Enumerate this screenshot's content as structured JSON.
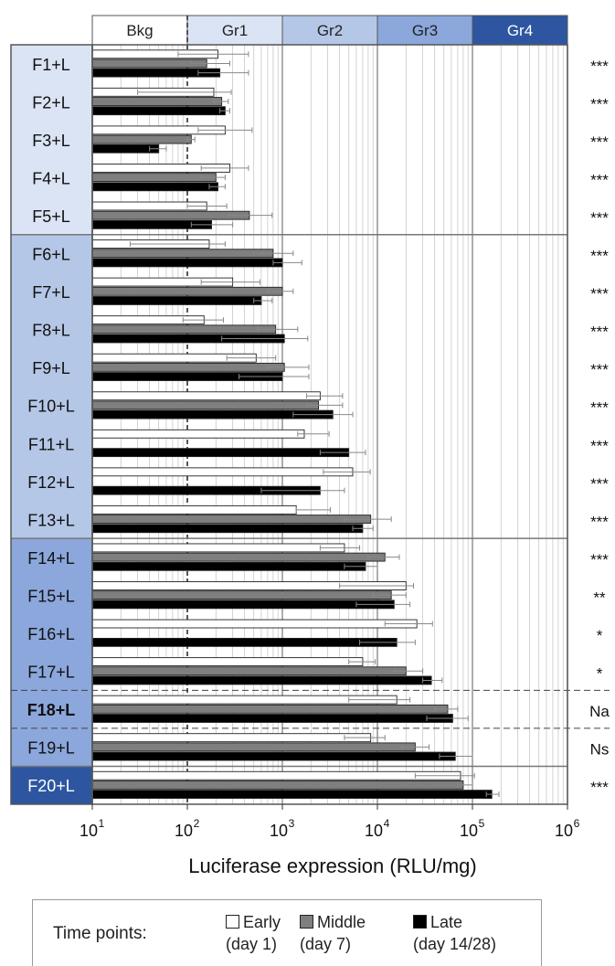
{
  "chart_data": {
    "type": "bar",
    "orientation": "horizontal",
    "xscale": "log",
    "xlim": [
      10,
      1000000
    ],
    "xlabel": "Luciferase expression (RLU/mg)",
    "xticks": [
      10,
      100,
      1000,
      10000,
      100000,
      1000000
    ],
    "xtick_labels": [
      {
        "base": "10",
        "exp": "1"
      },
      {
        "base": "10",
        "exp": "2"
      },
      {
        "base": "10",
        "exp": "3"
      },
      {
        "base": "10",
        "exp": "4"
      },
      {
        "base": "10",
        "exp": "5"
      },
      {
        "base": "10",
        "exp": "6"
      }
    ],
    "grid": "minor vertical gridlines on log scale",
    "background_reference_line": 100,
    "groups": [
      {
        "label": "Bkg",
        "from": 10,
        "to": 100,
        "color": "#ffffff",
        "text_color": "#222222"
      },
      {
        "label": "Gr1",
        "from": 100,
        "to": 1000,
        "color": "#dae4f4",
        "text_color": "#222222"
      },
      {
        "label": "Gr2",
        "from": 1000,
        "to": 10000,
        "color": "#b5c7e7",
        "text_color": "#222222"
      },
      {
        "label": "Gr3",
        "from": 10000,
        "to": 100000,
        "color": "#8ba7dc",
        "text_color": "#222222"
      },
      {
        "label": "Gr4",
        "from": 100000,
        "to": 1000000,
        "color": "#2e56a0",
        "text_color": "#ffffff"
      }
    ],
    "categories": [
      "F1+L",
      "F2+L",
      "F3+L",
      "F4+L",
      "F5+L",
      "F6+L",
      "F7+L",
      "F8+L",
      "F9+L",
      "F10+L",
      "F11+L",
      "F12+L",
      "F13+L",
      "F14+L",
      "F15+L",
      "F16+L",
      "F17+L",
      "F18+L",
      "F19+L",
      "F20+L"
    ],
    "category_group": [
      1,
      1,
      1,
      1,
      1,
      2,
      2,
      2,
      2,
      2,
      2,
      2,
      2,
      3,
      3,
      3,
      3,
      3,
      3,
      4
    ],
    "bold_categories": [
      "F18+L"
    ],
    "significance": [
      "***",
      "***",
      "***",
      "***",
      "***",
      "***",
      "***",
      "***",
      "***",
      "***",
      "***",
      "***",
      "***",
      "***",
      "**",
      "*",
      "*",
      "Na",
      "Ns",
      "***"
    ],
    "series": [
      {
        "name": "Early",
        "sub": "(day 1)",
        "color": "#ffffff",
        "values": [
          210,
          190,
          250,
          280,
          160,
          170,
          300,
          150,
          530,
          2500,
          1700,
          5500,
          1400,
          4500,
          20000,
          26000,
          7000,
          16000,
          8500,
          75000
        ],
        "err_low": [
          80,
          30,
          130,
          140,
          100,
          25,
          140,
          90,
          260,
          1800,
          1450,
          2700,
          1400,
          2500,
          4000,
          12000,
          5000,
          5000,
          4500,
          25000
        ],
        "err_high": [
          440,
          290,
          480,
          440,
          260,
          250,
          580,
          240,
          850,
          4300,
          3100,
          8400,
          3200,
          6500,
          24000,
          38000,
          9500,
          22000,
          12000,
          105000
        ]
      },
      {
        "name": "Middle",
        "sub": "(day 7)",
        "color": "#7f7f7f",
        "values": [
          160,
          230,
          110,
          200,
          450,
          800,
          1000,
          850,
          1050,
          2400,
          null,
          null,
          8500,
          12000,
          14000,
          null,
          20000,
          55000,
          25000,
          80000
        ],
        "err_low": [
          110,
          190,
          100,
          140,
          270,
          500,
          700,
          550,
          700,
          1800,
          null,
          null,
          4500,
          8000,
          9000,
          null,
          15000,
          40000,
          18000,
          70000
        ],
        "err_high": [
          280,
          270,
          120,
          250,
          780,
          1300,
          1300,
          1450,
          1900,
          4300,
          null,
          null,
          14000,
          17000,
          20000,
          null,
          30000,
          70000,
          35000,
          100000
        ],
        "missing": "F11+L, F12+L, F16+L show no middle bar"
      },
      {
        "name": "Late",
        "sub": "(day 14/28)",
        "color": "#000000",
        "values": [
          220,
          250,
          50,
          210,
          180,
          1000,
          600,
          1050,
          1000,
          3400,
          5000,
          2500,
          7000,
          7500,
          15000,
          16000,
          37000,
          62000,
          66000,
          160000
        ],
        "err_low": [
          130,
          220,
          40,
          170,
          110,
          800,
          500,
          230,
          350,
          1300,
          2500,
          600,
          5500,
          4500,
          6000,
          6500,
          30000,
          33000,
          45000,
          140000
        ],
        "err_high": [
          440,
          280,
          60,
          250,
          300,
          1600,
          780,
          1850,
          1900,
          5500,
          7500,
          4500,
          9000,
          10000,
          22000,
          25000,
          48000,
          90000,
          100000,
          190000
        ]
      }
    ]
  },
  "legend": {
    "title": "Time points:",
    "items": [
      {
        "label": "Early",
        "sub": "(day 1)"
      },
      {
        "label": "Middle",
        "sub": "(day 7)"
      },
      {
        "label": "Late",
        "sub": "(day 14/28)"
      }
    ]
  },
  "colors": {
    "plot_border": "#555555",
    "gridline": "#c8c8c8",
    "major_line": "#777777",
    "error_bar": "#888888"
  }
}
